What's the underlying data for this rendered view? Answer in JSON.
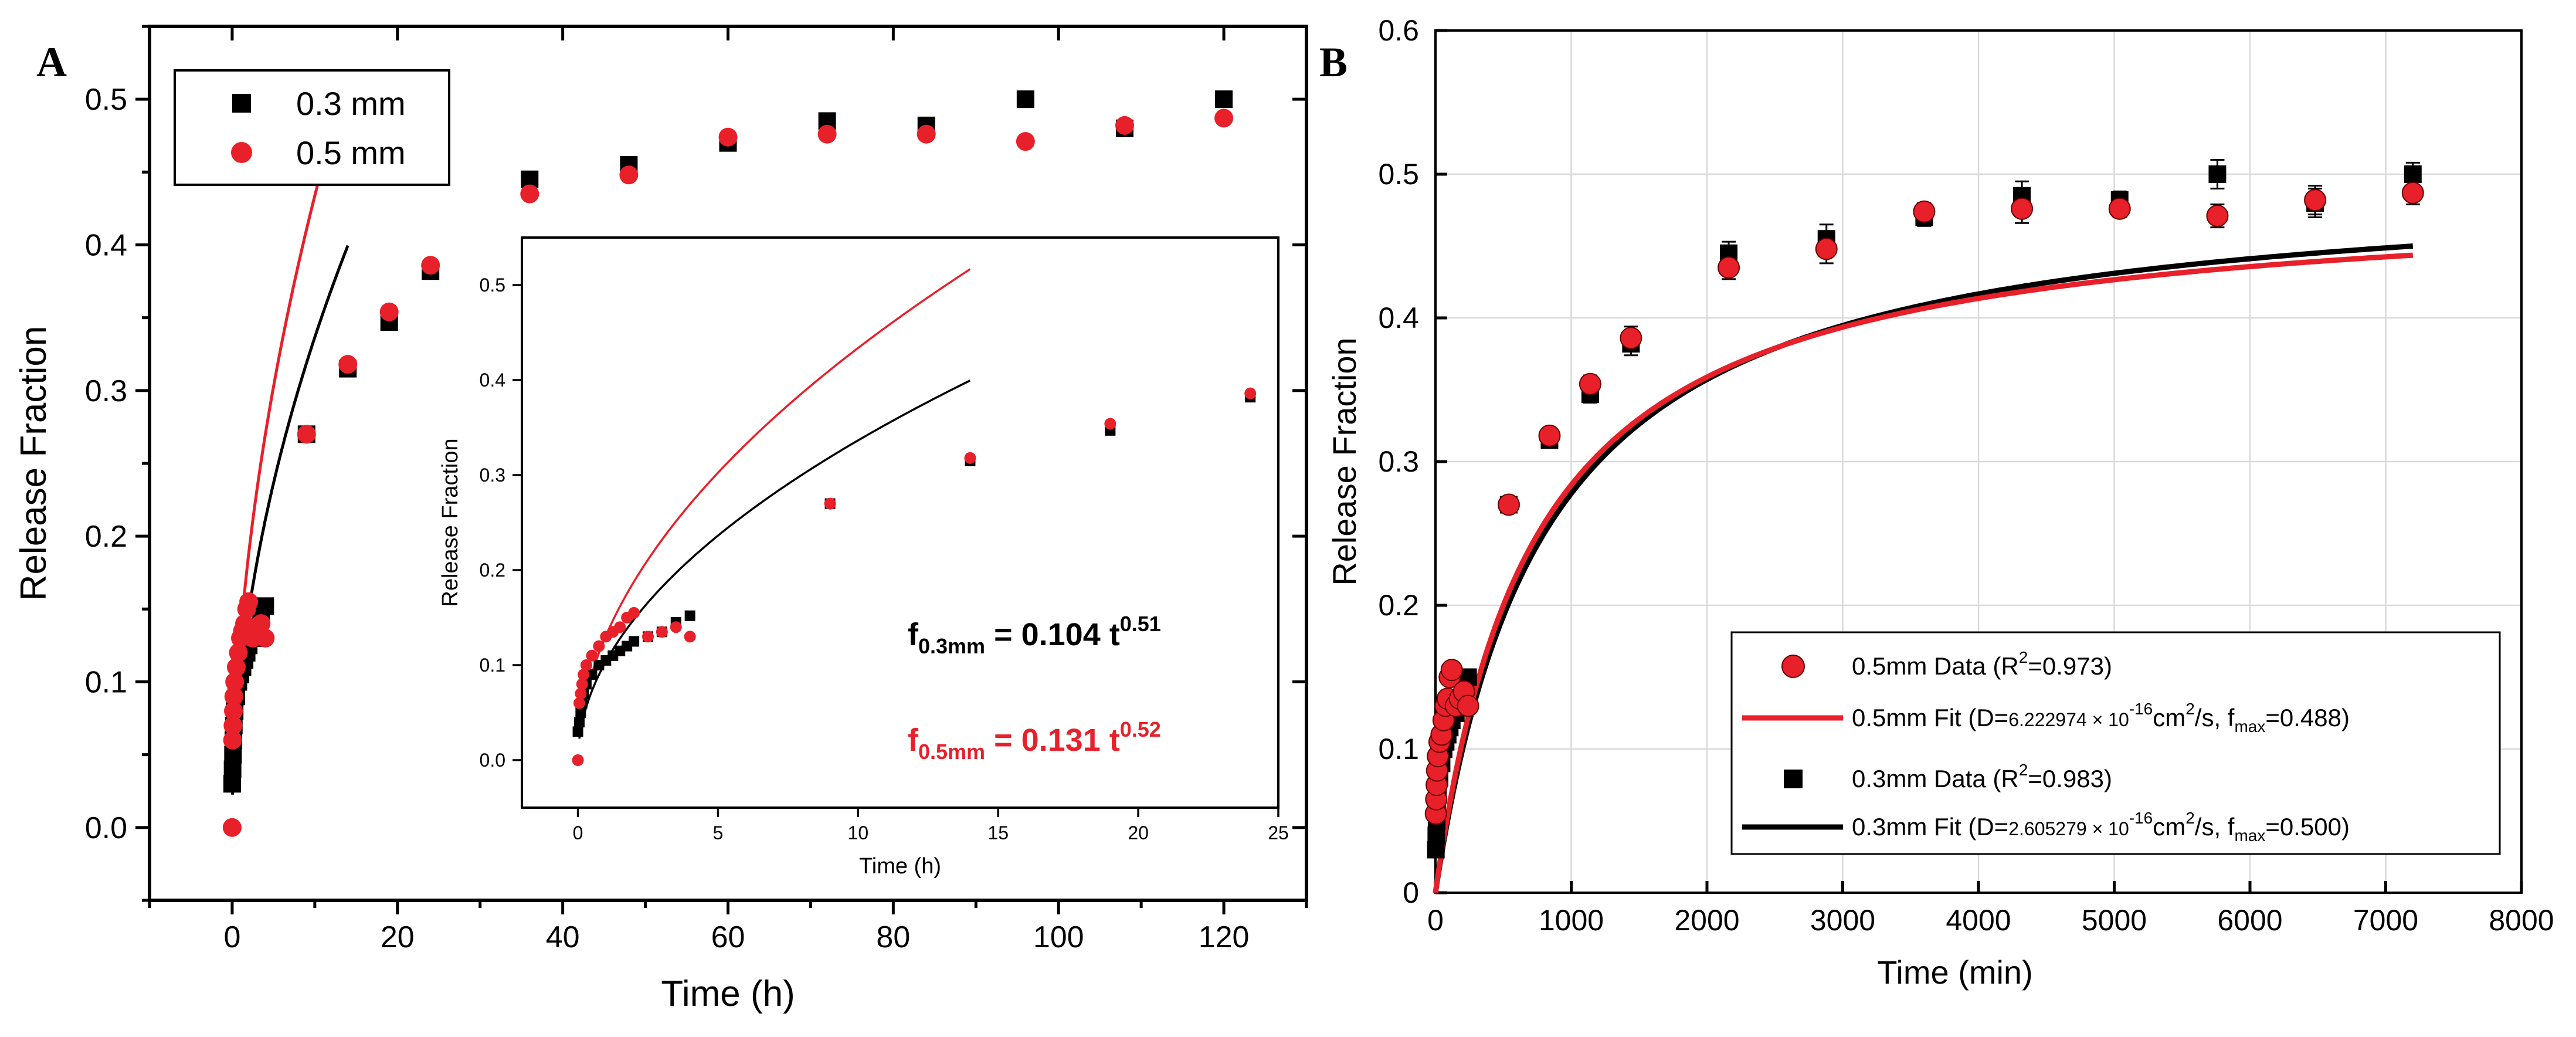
{
  "chart_data": [
    {
      "panel": "A",
      "type": "scatter",
      "title": "",
      "xlabel": "Time (h)",
      "ylabel": "Release Fraction",
      "xlim": [
        -10,
        130
      ],
      "ylim": [
        -0.05,
        0.55
      ],
      "xticks": [
        "0",
        "20",
        "40",
        "60",
        "80",
        "100",
        "120"
      ],
      "yticks": [
        "0.0",
        "0.1",
        "0.2",
        "0.3",
        "0.4",
        "0.5"
      ],
      "grid": false,
      "legend_position": "top-left",
      "legend": [
        "0.3 mm",
        "0.5 mm"
      ],
      "series": [
        {
          "name": "0.3 mm",
          "marker": "square",
          "color": "#000000",
          "x": [
            0,
            0.05,
            0.1,
            0.15,
            0.2,
            0.3,
            0.5,
            0.75,
            1,
            1.25,
            1.5,
            1.75,
            2,
            2.5,
            3,
            3.5,
            4,
            9,
            14,
            19,
            24,
            36,
            48,
            60,
            72,
            84,
            96,
            108,
            120
          ],
          "y": [
            0.03,
            0.04,
            0.05,
            0.06,
            0.07,
            0.08,
            0.09,
            0.1,
            0.105,
            0.11,
            0.115,
            0.12,
            0.125,
            0.13,
            0.135,
            0.145,
            0.152,
            0.27,
            0.315,
            0.347,
            0.382,
            0.445,
            0.455,
            0.47,
            0.485,
            0.482,
            0.5,
            0.48,
            0.5
          ]
        },
        {
          "name": "0.5 mm",
          "marker": "circle",
          "color": "#e8202a",
          "x": [
            0,
            0.05,
            0.1,
            0.15,
            0.2,
            0.3,
            0.5,
            0.75,
            1,
            1.25,
            1.5,
            1.75,
            2,
            2.5,
            3,
            3.5,
            4,
            9,
            14,
            19,
            24,
            36,
            48,
            60,
            72,
            84,
            96,
            108,
            120
          ],
          "y": [
            0.0,
            0.06,
            0.07,
            0.08,
            0.09,
            0.1,
            0.11,
            0.12,
            0.13,
            0.135,
            0.14,
            0.15,
            0.155,
            0.13,
            0.135,
            0.14,
            0.13,
            0.27,
            0.318,
            0.354,
            0.386,
            0.435,
            0.448,
            0.474,
            0.476,
            0.476,
            0.471,
            0.482,
            0.487
          ]
        },
        {
          "name": "0.3 mm fit",
          "type": "line",
          "color": "#000000",
          "a": 0.104,
          "n": 0.51,
          "x_range": [
            0.05,
            14
          ]
        },
        {
          "name": "0.5 mm fit",
          "type": "line",
          "color": "#e8202a",
          "a": 0.131,
          "n": 0.52,
          "x_range": [
            0.05,
            14
          ]
        }
      ]
    },
    {
      "panel": "A-inset",
      "type": "scatter",
      "xlabel": "Time (h)",
      "ylabel": "Release Fraction",
      "xlim": [
        -2,
        25
      ],
      "ylim": [
        -0.05,
        0.55
      ],
      "xticks": [
        "0",
        "5",
        "10",
        "15",
        "20",
        "25"
      ],
      "yticks": [
        "0.0",
        "0.1",
        "0.2",
        "0.3",
        "0.4",
        "0.5"
      ],
      "grid": false,
      "annotations": [
        {
          "base": "f",
          "sub": "0.3mm",
          "mid": " = 0.104 t",
          "sup": "0.51",
          "color": "#000000"
        },
        {
          "base": "f",
          "sub": "0.5mm",
          "mid": " = 0.131 t",
          "sup": "0.52",
          "color": "#e8202a"
        }
      ]
    },
    {
      "panel": "B",
      "type": "scatter",
      "title": "",
      "xlabel": "Time (min)",
      "ylabel": "Release Fraction",
      "xlim": [
        0,
        8000
      ],
      "ylim": [
        0,
        0.6
      ],
      "xticks": [
        "0",
        "1000",
        "2000",
        "3000",
        "4000",
        "5000",
        "6000",
        "7000",
        "8000"
      ],
      "yticks": [
        "0",
        "0.1",
        "0.2",
        "0.3",
        "0.4",
        "0.5",
        "0.6"
      ],
      "grid": true,
      "legend_position": "bottom-right",
      "legend": [
        {
          "type": "circle",
          "color": "#e8202a",
          "text": "0.5mm Data (R",
          "sup": "2",
          "text2": "=0.973)"
        },
        {
          "type": "line",
          "color": "#e8202a",
          "text": "0.5mm Fit (D=",
          "small": "6.222974 × 10",
          "sup": "-16",
          "text2": "cm",
          "sup2": "2",
          "text3": "/s, f",
          "sub": "max",
          "text4": "=0.488)"
        },
        {
          "type": "square",
          "color": "#000000",
          "text": "0.3mm Data (R",
          "sup": "2",
          "text2": "=0.983)"
        },
        {
          "type": "line",
          "color": "#000000",
          "text": "0.3mm Fit (D=",
          "small": "2.605279 × 10",
          "sup": "-16",
          "text2": "cm",
          "sup2": "2",
          "text3": "/s, f",
          "sub": "max",
          "text4": "=0.500)"
        }
      ],
      "series": [
        {
          "name": "0.5mm Data",
          "marker": "circle",
          "color": "#e8202a",
          "x": [
            3,
            6,
            9,
            12,
            18,
            30,
            45,
            60,
            75,
            90,
            105,
            120,
            150,
            180,
            210,
            240,
            540,
            840,
            1140,
            1440,
            2160,
            2880,
            3600,
            4320,
            5040,
            5760,
            6480,
            7200
          ],
          "y": [
            0.055,
            0.065,
            0.075,
            0.085,
            0.095,
            0.105,
            0.11,
            0.12,
            0.13,
            0.135,
            0.15,
            0.155,
            0.13,
            0.135,
            0.14,
            0.13,
            0.27,
            0.318,
            0.354,
            0.386,
            0.435,
            0.448,
            0.474,
            0.476,
            0.476,
            0.471,
            0.482,
            0.487
          ],
          "err": [
            0,
            0,
            0,
            0,
            0,
            0,
            0,
            0,
            0,
            0,
            0,
            0,
            0,
            0,
            0,
            0,
            0.005,
            0.005,
            0.006,
            0.008,
            0.008,
            0.01,
            0.006,
            0.01,
            0.006,
            0.008,
            0.01,
            0.008
          ]
        },
        {
          "name": "0.3mm Data",
          "marker": "square",
          "color": "#000000",
          "x": [
            3,
            6,
            9,
            12,
            18,
            30,
            45,
            60,
            75,
            90,
            105,
            120,
            150,
            180,
            210,
            240,
            540,
            840,
            1140,
            1440,
            2160,
            2880,
            3600,
            4320,
            5040,
            5760,
            6480,
            7200
          ],
          "y": [
            0.03,
            0.04,
            0.05,
            0.06,
            0.07,
            0.08,
            0.09,
            0.1,
            0.105,
            0.11,
            0.115,
            0.12,
            0.125,
            0.13,
            0.14,
            0.15,
            0.27,
            0.315,
            0.347,
            0.382,
            0.445,
            0.455,
            0.47,
            0.485,
            0.482,
            0.5,
            0.48,
            0.5
          ],
          "err": [
            0,
            0,
            0,
            0,
            0,
            0,
            0,
            0,
            0,
            0,
            0,
            0,
            0,
            0,
            0,
            0,
            0.005,
            0.005,
            0.006,
            0.008,
            0.008,
            0.01,
            0.006,
            0.01,
            0.006,
            0.01,
            0.01,
            0.008
          ]
        },
        {
          "name": "0.5mm Fit",
          "type": "line",
          "color": "#e8202a",
          "fmax": 0.488,
          "tau": 720
        },
        {
          "name": "0.3mm Fit",
          "type": "line",
          "color": "#000000",
          "fmax": 0.5,
          "tau": 800
        }
      ]
    }
  ],
  "panel_labels": [
    "A",
    "B"
  ]
}
